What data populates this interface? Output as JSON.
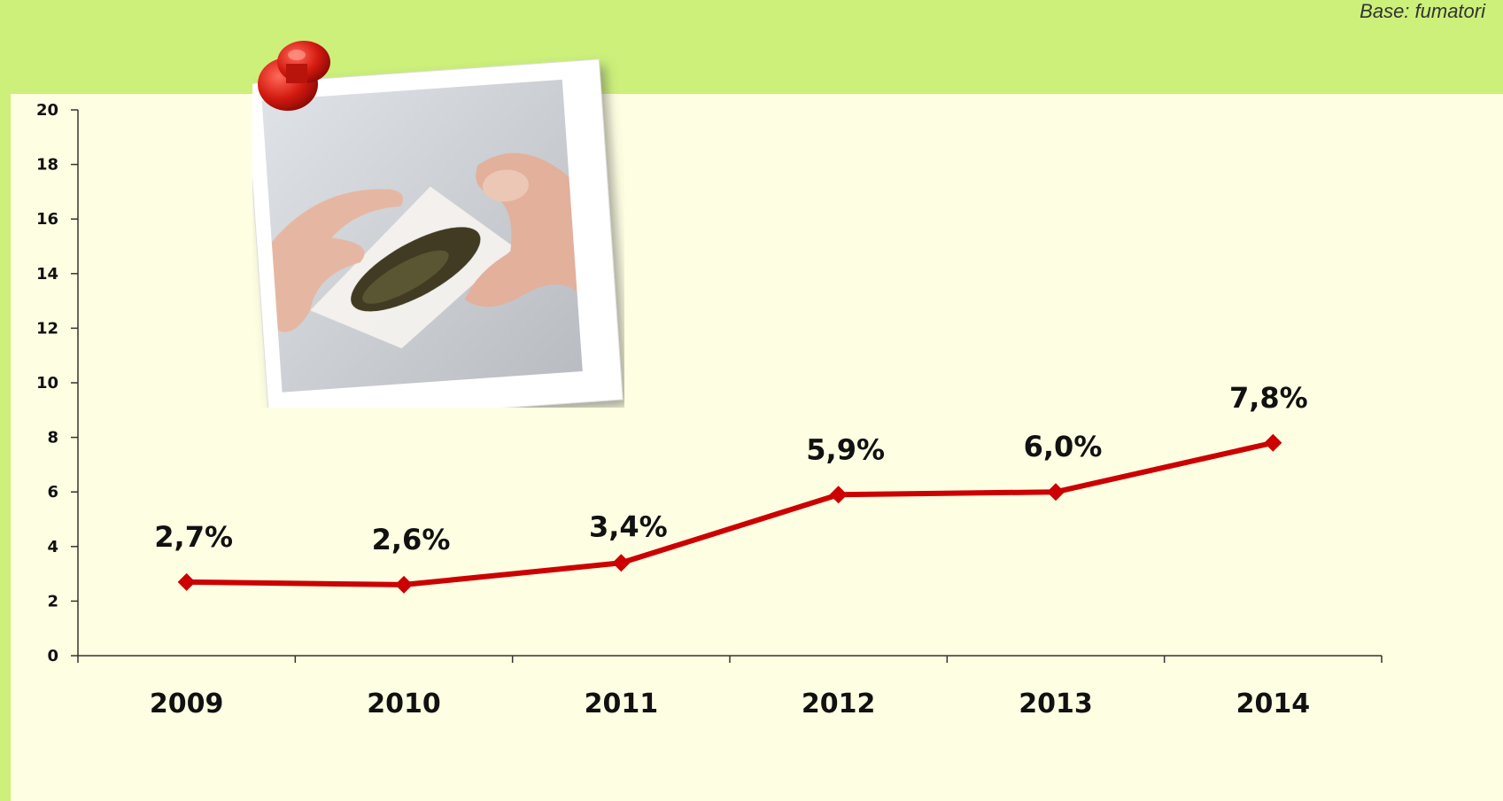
{
  "note": "Base: fumatori",
  "photo": {
    "description_icon": "rolling-tobacco-photo-icon",
    "pin_icon": "red-pushpin-icon"
  },
  "colors": {
    "background": "#ccf07a",
    "panel": "#fefee2",
    "line": "#cc0000",
    "marker": "#cc0000"
  },
  "chart_data": {
    "type": "line",
    "categories": [
      "2009",
      "2010",
      "2011",
      "2012",
      "2013",
      "2014"
    ],
    "series": [
      {
        "values": [
          2.7,
          2.6,
          3.4,
          5.9,
          6.0,
          7.8
        ],
        "labels": [
          "2,7%",
          "2,6%",
          "3,4%",
          "5,9%",
          "6,0%",
          "7,8%"
        ]
      }
    ],
    "ylim": [
      0,
      20
    ],
    "yticks": [
      "0",
      "2",
      "4",
      "6",
      "8",
      "10",
      "12",
      "14",
      "16",
      "18",
      "20"
    ],
    "title": "",
    "xlabel": "",
    "ylabel": "",
    "grid": false,
    "legend": "none"
  }
}
